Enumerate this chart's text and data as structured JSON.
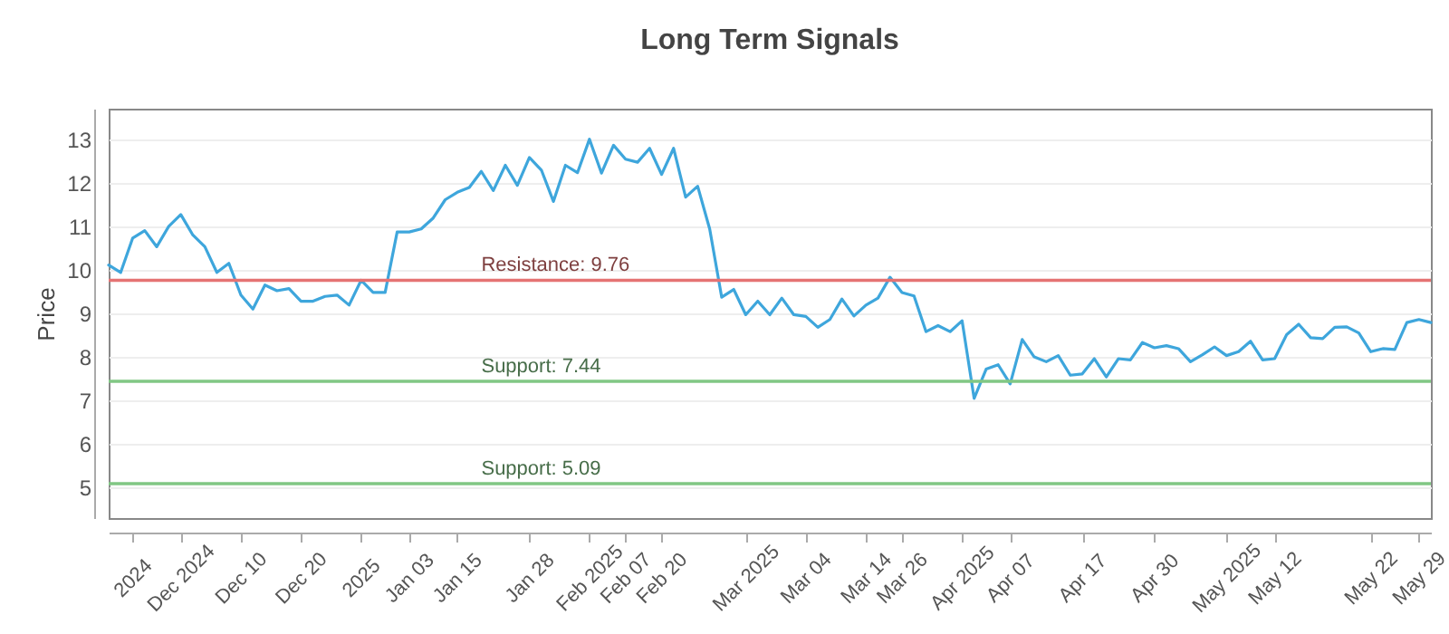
{
  "chart_data": {
    "type": "line",
    "title": "Long Term Signals",
    "ylabel": "Price",
    "categories": [
      null,
      null,
      "2024",
      null,
      null,
      null,
      "Dec 2024",
      null,
      null,
      null,
      null,
      "Dec 10",
      null,
      null,
      null,
      null,
      "Dec 20",
      null,
      null,
      null,
      null,
      "2025",
      null,
      null,
      null,
      "Jan 03",
      null,
      null,
      null,
      "Jan 15",
      null,
      null,
      null,
      null,
      null,
      "Jan 28",
      null,
      null,
      null,
      null,
      "Feb 2025",
      null,
      null,
      "Feb 07",
      null,
      null,
      "Feb 20",
      null,
      null,
      null,
      null,
      null,
      null,
      "Mar 2025",
      null,
      null,
      null,
      null,
      "Mar 04",
      null,
      null,
      null,
      null,
      "Mar 14",
      null,
      null,
      "Mar 26",
      null,
      null,
      null,
      null,
      "Apr 2025",
      null,
      null,
      null,
      "Apr 07",
      null,
      null,
      null,
      null,
      null,
      "Apr 17",
      null,
      null,
      null,
      null,
      null,
      "Apr 30",
      null,
      null,
      null,
      null,
      null,
      "May 2025",
      null,
      null,
      null,
      "May 12",
      null,
      null,
      null,
      null,
      null,
      null,
      null,
      "May 22",
      null,
      null,
      null,
      "May 29",
      null
    ],
    "series": [
      {
        "color": "#3ea6dc",
        "values": [
          10.11,
          9.94,
          10.73,
          10.9,
          10.53,
          11.0,
          11.27,
          10.8,
          10.53,
          9.94,
          10.15,
          9.42,
          9.1,
          9.65,
          9.52,
          9.57,
          9.28,
          9.28,
          9.39,
          9.42,
          9.19,
          9.76,
          9.48,
          9.48,
          10.87,
          10.87,
          10.94,
          11.19,
          11.61,
          11.78,
          11.89,
          12.26,
          11.82,
          12.4,
          11.94,
          12.58,
          12.29,
          11.57,
          12.4,
          12.23,
          13.0,
          12.22,
          12.86,
          12.54,
          12.47,
          12.79,
          12.19,
          12.79,
          11.67,
          11.92,
          10.94,
          9.37,
          9.55,
          8.97,
          9.28,
          8.97,
          9.35,
          8.97,
          8.93,
          8.68,
          8.86,
          9.33,
          8.94,
          9.19,
          9.35,
          9.83,
          9.48,
          9.4,
          8.58,
          8.72,
          8.58,
          8.83,
          7.05,
          7.72,
          7.82,
          7.38,
          8.4,
          8.0,
          7.89,
          8.03,
          7.58,
          7.61,
          7.96,
          7.54,
          7.96,
          7.93,
          8.33,
          8.21,
          8.26,
          8.19,
          7.89,
          8.05,
          8.23,
          8.03,
          8.12,
          8.36,
          7.93,
          7.96,
          8.51,
          8.75,
          8.44,
          8.42,
          8.68,
          8.69,
          8.55,
          8.12,
          8.19,
          8.17,
          8.79,
          8.86,
          8.79
        ]
      }
    ],
    "ylim": [
      4.3,
      13.7
    ],
    "yticks": [
      5,
      6,
      7,
      8,
      9,
      10,
      11,
      12,
      13
    ],
    "grid": "y",
    "ref_lines": [
      {
        "axis": "y",
        "value": 9.76,
        "label": "Resistance: 9.76",
        "color": "#e57373"
      },
      {
        "axis": "y",
        "value": 7.44,
        "label": "Support: 7.44",
        "color": "#81c784"
      },
      {
        "axis": "y",
        "value": 5.09,
        "label": "Support: 5.09",
        "color": "#81c784"
      }
    ]
  }
}
